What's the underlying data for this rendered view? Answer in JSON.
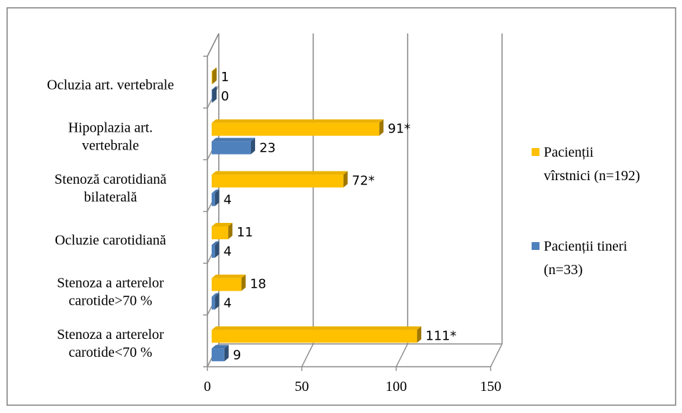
{
  "chart_data": {
    "type": "bar",
    "orientation": "horizontal",
    "categories": [
      [
        "Ocluzia art. vertebrale"
      ],
      [
        "Hipoplazia art.",
        "vertebrale"
      ],
      [
        "Stenoză carotidiană",
        "bilaterală"
      ],
      [
        "Ocluzie carotidiană"
      ],
      [
        "Stenoza a arterelor",
        "carotide>70 %"
      ],
      [
        "Stenoza a arterelor",
        "carotide<70 %"
      ]
    ],
    "series": [
      {
        "name": [
          "Pacienții",
          "vîrstnici (n=192)"
        ],
        "color": "#ffc000",
        "values": [
          1,
          91,
          72,
          11,
          18,
          111
        ],
        "labels": [
          "1",
          "91*",
          "72*",
          "11",
          "18",
          "111*"
        ]
      },
      {
        "name": [
          "Pacienții tineri",
          "(n=33)"
        ],
        "color": "#4f81bd",
        "values": [
          0,
          23,
          4,
          4,
          4,
          9
        ],
        "labels": [
          "0",
          "23",
          "4",
          "4",
          "4",
          "9"
        ]
      }
    ],
    "xlim": [
      0,
      150
    ],
    "x_ticks": [
      "0",
      "50",
      "100",
      "150"
    ],
    "x_tick_values": [
      0,
      50,
      100,
      150
    ],
    "grid": true,
    "legend_position": "right",
    "style": "3d"
  }
}
